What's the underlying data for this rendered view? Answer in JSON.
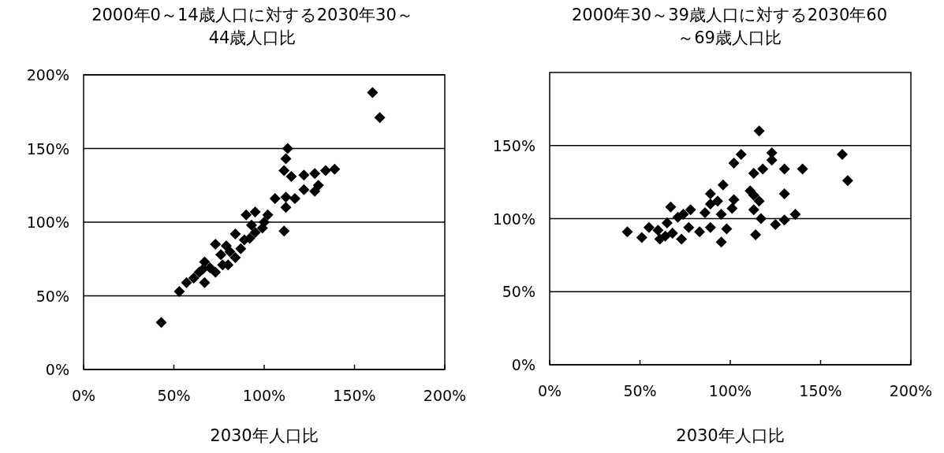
{
  "chart_data": [
    {
      "type": "scatter",
      "title": "2000年0～14歳人口に対する2030年30～44歳人口比",
      "xlabel": "2030年人口比",
      "marker": "diamond",
      "grid": "y",
      "xlim": [
        0,
        200
      ],
      "ylim": [
        0,
        200
      ],
      "xticks": [
        {
          "value": 0,
          "label": "0%"
        },
        {
          "value": 50,
          "label": "50%"
        },
        {
          "value": 100,
          "label": "100%"
        },
        {
          "value": 150,
          "label": "150%"
        },
        {
          "value": 200,
          "label": "200%"
        }
      ],
      "yticks": [
        {
          "value": 0,
          "label": "0%"
        },
        {
          "value": 50,
          "label": "50%"
        },
        {
          "value": 100,
          "label": "100%"
        },
        {
          "value": 150,
          "label": "150%"
        },
        {
          "value": 200,
          "label": "200%"
        }
      ],
      "series": [
        {
          "color": "#000000",
          "x": [
            160,
            164,
            113,
            112,
            111,
            115,
            122,
            128,
            134,
            139,
            130,
            122,
            128,
            106,
            112,
            117,
            112,
            111,
            90,
            95,
            102,
            100,
            93,
            95,
            84,
            79,
            73,
            84,
            80,
            67,
            66,
            61,
            57,
            53,
            67,
            73,
            77,
            87,
            92,
            43,
            70,
            64,
            76,
            81,
            89,
            99
          ],
          "values": [
            188,
            171,
            150,
            143,
            135,
            131,
            132,
            133,
            135,
            136,
            125,
            122,
            121,
            116,
            117,
            116,
            110,
            94,
            105,
            107,
            105,
            100,
            98,
            93,
            92,
            84,
            85,
            76,
            71,
            73,
            68,
            62,
            59,
            53,
            59,
            66,
            71,
            82,
            89,
            32,
            69,
            66,
            78,
            80,
            88,
            96
          ]
        }
      ]
    },
    {
      "type": "scatter",
      "title": "2000年30～39歳人口に対する2030年60～69歳人口比",
      "xlabel": "2030年人口比",
      "marker": "diamond",
      "grid": "y",
      "xlim": [
        0,
        200
      ],
      "ylim": [
        0,
        200
      ],
      "xticks": [
        {
          "value": 0,
          "label": "0%"
        },
        {
          "value": 50,
          "label": "50%"
        },
        {
          "value": 100,
          "label": "100%"
        },
        {
          "value": 150,
          "label": "150%"
        },
        {
          "value": 200,
          "label": "200%"
        }
      ],
      "yticks": [
        {
          "value": 0,
          "label": "0%"
        },
        {
          "value": 50,
          "label": "50%"
        },
        {
          "value": 100,
          "label": "100%"
        },
        {
          "value": 150,
          "label": "150%"
        }
      ],
      "series": [
        {
          "color": "#000000",
          "x": [
            116,
            106,
            102,
            123,
            123,
            162,
            165,
            118,
            113,
            130,
            140,
            96,
            111,
            113,
            116,
            130,
            102,
            101,
            113,
            117,
            136,
            130,
            125,
            114,
            98,
            95,
            43,
            51,
            67,
            89,
            93,
            89,
            83,
            89,
            73,
            61,
            55,
            60,
            65,
            71,
            78,
            86,
            95,
            68,
            77,
            64,
            74
          ],
          "values": [
            160,
            144,
            138,
            145,
            140,
            144,
            126,
            134,
            131,
            134,
            134,
            123,
            119,
            116,
            112,
            117,
            113,
            107,
            106,
            100,
            103,
            99,
            96,
            89,
            93,
            84,
            91,
            87,
            108,
            117,
            112,
            110,
            91,
            94,
            86,
            86,
            94,
            92,
            97,
            101,
            106,
            104,
            103,
            90,
            94,
            88,
            103
          ]
        }
      ]
    }
  ]
}
